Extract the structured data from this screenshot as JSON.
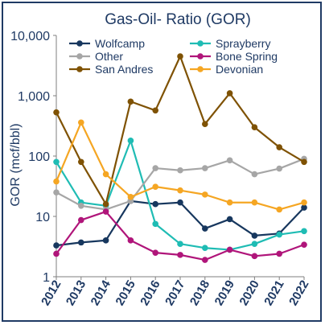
{
  "chart_data": {
    "type": "line",
    "title": "Gas-Oil- Ratio (GOR)",
    "ylabel": "GOR (mcf/bbl)",
    "xlabel": "",
    "y_scale": "log",
    "ylim": [
      1,
      10000
    ],
    "y_ticks": [
      {
        "value": 1,
        "label": "1"
      },
      {
        "value": 10,
        "label": "10"
      },
      {
        "value": 100,
        "label": "100"
      },
      {
        "value": 1000,
        "label": "1,000"
      },
      {
        "value": 10000,
        "label": "10,000"
      }
    ],
    "x": [
      "2012",
      "2013",
      "2014",
      "2015",
      "2016",
      "2017",
      "2018",
      "2019",
      "2020",
      "2021",
      "2022"
    ],
    "grid": false,
    "legend_position": "top",
    "series": [
      {
        "name": "Wolfcamp",
        "color": "#17375e",
        "values": [
          3.3,
          3.7,
          4.0,
          18,
          16,
          17,
          6.3,
          9,
          4.8,
          5.2,
          14
        ]
      },
      {
        "name": "Sprayberry",
        "color": "#1fbcb4",
        "values": [
          80,
          17,
          15,
          180,
          7.5,
          3.5,
          3.0,
          2.8,
          3.5,
          5.0,
          5.7
        ]
      },
      {
        "name": "Other",
        "color": "#a6a6a6",
        "values": [
          25,
          15,
          13,
          18,
          63,
          58,
          63,
          85,
          50,
          62,
          90
        ]
      },
      {
        "name": "Bone Spring",
        "color": "#b0157a",
        "values": [
          2.4,
          8.7,
          12,
          4.0,
          2.5,
          2.3,
          1.9,
          2.8,
          2.2,
          2.4,
          3.4
        ]
      },
      {
        "name": "San Andres",
        "color": "#7f5204",
        "values": [
          530,
          80,
          16,
          800,
          570,
          4500,
          340,
          1100,
          300,
          140,
          80
        ]
      },
      {
        "name": "Devonian",
        "color": "#f5a623",
        "values": [
          38,
          360,
          50,
          21,
          31,
          27,
          23,
          17,
          17,
          13,
          17
        ]
      }
    ]
  }
}
